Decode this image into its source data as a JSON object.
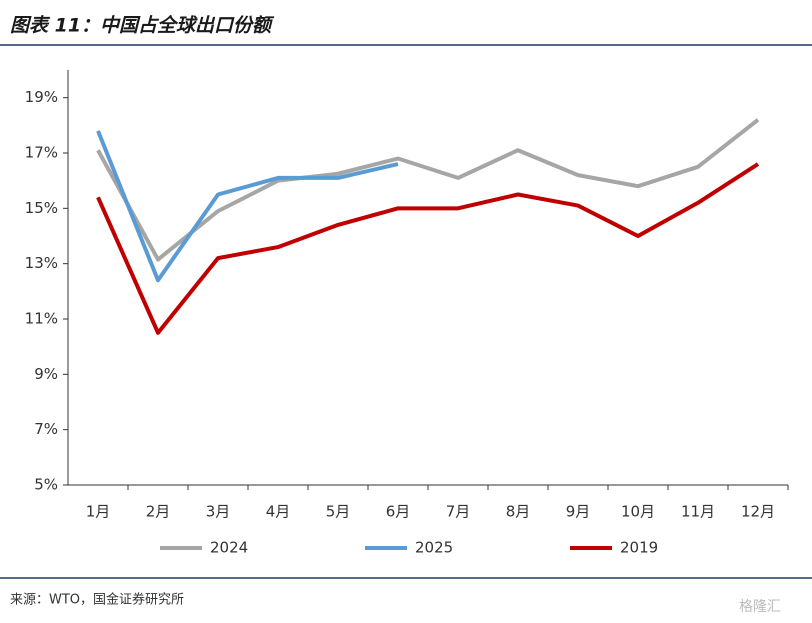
{
  "chart_data": {
    "type": "line",
    "title": "图表 11：中国占全球出口份额",
    "source": "来源：WTO，国金证券研究所",
    "watermark": "格隆汇",
    "categories": [
      "1月",
      "2月",
      "3月",
      "4月",
      "5月",
      "6月",
      "7月",
      "8月",
      "9月",
      "10月",
      "11月",
      "12月"
    ],
    "series": [
      {
        "name": "2024",
        "color": "#a6a6a6",
        "values": [
          17.1,
          13.15,
          14.9,
          16.0,
          16.25,
          16.8,
          16.1,
          17.1,
          16.2,
          15.8,
          16.5,
          18.2
        ]
      },
      {
        "name": "2025",
        "color": "#5b9bd5",
        "values": [
          17.8,
          12.4,
          15.5,
          16.1,
          16.1,
          16.6,
          null,
          null,
          null,
          null,
          null,
          null
        ]
      },
      {
        "name": "2019",
        "color": "#c00000",
        "values": [
          15.4,
          10.5,
          13.2,
          13.6,
          14.4,
          15.0,
          15.0,
          15.5,
          15.1,
          14.0,
          15.2,
          16.6
        ]
      }
    ],
    "ylim": [
      5,
      20
    ],
    "yticks": [
      {
        "value": 5,
        "label": "5%"
      },
      {
        "value": 7,
        "label": "7%"
      },
      {
        "value": 9,
        "label": "9%"
      },
      {
        "value": 11,
        "label": "11%"
      },
      {
        "value": 13,
        "label": "13%"
      },
      {
        "value": 15,
        "label": "15%"
      },
      {
        "value": 17,
        "label": "17%"
      },
      {
        "value": 19,
        "label": "19%"
      }
    ],
    "grid": false
  }
}
